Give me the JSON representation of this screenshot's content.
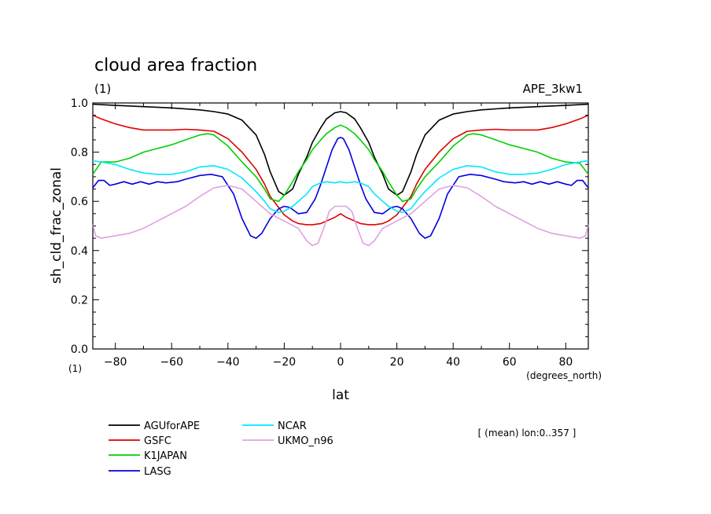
{
  "chart_data": {
    "type": "line",
    "title": "cloud area fraction",
    "subtitle_left": "(1)",
    "subtitle_right": "APE_3kw1",
    "xlabel": "lat",
    "xunit": "(degrees_north)",
    "ylabel": "sh_cld_frac_zonal",
    "yunit": "(1)",
    "note": "[ (mean) lon:0..357 ]",
    "xlim": [
      -88,
      88
    ],
    "ylim": [
      0,
      1
    ],
    "xticks": [
      -80,
      -60,
      -40,
      -20,
      0,
      20,
      40,
      60,
      80
    ],
    "xtick_labels": [
      "−80",
      "−60",
      "−40",
      "−20",
      "0",
      "20",
      "40",
      "60",
      "80"
    ],
    "yticks": [
      0,
      0.2,
      0.4,
      0.6,
      0.8,
      1.0
    ],
    "ytick_labels": [
      "0.0",
      "0.2",
      "0.4",
      "0.6",
      "0.8",
      "1.0"
    ],
    "grid": false,
    "legend_position": "bottom",
    "series": [
      {
        "name": "AGUforAPE",
        "color": "#000000",
        "x": [
          -88,
          -80,
          -70,
          -60,
          -50,
          -45,
          -40,
          -35,
          -30,
          -27,
          -25,
          -22,
          -20,
          -17,
          -15,
          -12,
          -10,
          -7,
          -5,
          -2,
          0,
          2,
          5,
          7,
          10,
          12,
          15,
          17,
          20,
          22,
          25,
          27,
          30,
          35,
          40,
          45,
          50,
          60,
          70,
          80,
          88
        ],
        "y": [
          0.995,
          0.99,
          0.985,
          0.98,
          0.972,
          0.965,
          0.955,
          0.93,
          0.87,
          0.79,
          0.72,
          0.64,
          0.625,
          0.65,
          0.71,
          0.78,
          0.84,
          0.9,
          0.935,
          0.96,
          0.965,
          0.96,
          0.935,
          0.9,
          0.84,
          0.78,
          0.71,
          0.65,
          0.625,
          0.64,
          0.72,
          0.79,
          0.87,
          0.93,
          0.955,
          0.965,
          0.972,
          0.98,
          0.985,
          0.99,
          0.995
        ]
      },
      {
        "name": "GSFC",
        "color": "#e00000",
        "x": [
          -88,
          -85,
          -80,
          -75,
          -70,
          -60,
          -55,
          -50,
          -45,
          -40,
          -35,
          -30,
          -27,
          -25,
          -22,
          -20,
          -17,
          -15,
          -12,
          -10,
          -7,
          -5,
          -2,
          0,
          2,
          5,
          7,
          10,
          12,
          15,
          17,
          20,
          22,
          25,
          27,
          30,
          35,
          40,
          45,
          50,
          55,
          60,
          70,
          75,
          80,
          85,
          88
        ],
        "y": [
          0.95,
          0.935,
          0.915,
          0.9,
          0.89,
          0.89,
          0.893,
          0.89,
          0.885,
          0.855,
          0.8,
          0.73,
          0.67,
          0.62,
          0.575,
          0.545,
          0.52,
          0.51,
          0.505,
          0.505,
          0.51,
          0.52,
          0.535,
          0.55,
          0.535,
          0.52,
          0.51,
          0.505,
          0.505,
          0.51,
          0.52,
          0.545,
          0.575,
          0.62,
          0.67,
          0.73,
          0.8,
          0.855,
          0.885,
          0.89,
          0.893,
          0.89,
          0.89,
          0.9,
          0.915,
          0.935,
          0.95
        ]
      },
      {
        "name": "K1JAPAN",
        "color": "#00d000",
        "x": [
          -88,
          -85,
          -80,
          -75,
          -70,
          -65,
          -60,
          -55,
          -50,
          -47,
          -45,
          -40,
          -35,
          -30,
          -27,
          -25,
          -22,
          -20,
          -17,
          -15,
          -12,
          -10,
          -7,
          -5,
          -2,
          0,
          2,
          5,
          7,
          10,
          12,
          15,
          17,
          20,
          22,
          25,
          27,
          30,
          35,
          40,
          45,
          47,
          50,
          55,
          60,
          65,
          70,
          75,
          80,
          85,
          88
        ],
        "y": [
          0.71,
          0.76,
          0.76,
          0.775,
          0.8,
          0.815,
          0.83,
          0.85,
          0.87,
          0.875,
          0.87,
          0.825,
          0.76,
          0.7,
          0.65,
          0.61,
          0.6,
          0.625,
          0.68,
          0.72,
          0.77,
          0.81,
          0.85,
          0.875,
          0.9,
          0.91,
          0.9,
          0.875,
          0.85,
          0.81,
          0.77,
          0.72,
          0.68,
          0.625,
          0.6,
          0.61,
          0.65,
          0.7,
          0.76,
          0.825,
          0.87,
          0.875,
          0.87,
          0.85,
          0.83,
          0.815,
          0.8,
          0.775,
          0.76,
          0.755,
          0.71
        ]
      },
      {
        "name": "LASG",
        "color": "#0000e0",
        "x": [
          -88,
          -86,
          -84,
          -82,
          -80,
          -77,
          -74,
          -71,
          -68,
          -65,
          -62,
          -58,
          -55,
          -50,
          -46,
          -42,
          -38,
          -35,
          -32,
          -30,
          -28,
          -25,
          -22,
          -20,
          -18,
          -15,
          -12,
          -9,
          -7,
          -5,
          -3,
          -1,
          0,
          1,
          3,
          5,
          7,
          9,
          12,
          15,
          18,
          20,
          22,
          25,
          28,
          30,
          32,
          35,
          38,
          42,
          46,
          50,
          55,
          58,
          62,
          65,
          68,
          71,
          74,
          77,
          80,
          82,
          84,
          86,
          88
        ],
        "y": [
          0.655,
          0.685,
          0.685,
          0.665,
          0.67,
          0.68,
          0.67,
          0.68,
          0.67,
          0.68,
          0.675,
          0.68,
          0.69,
          0.705,
          0.71,
          0.7,
          0.63,
          0.53,
          0.46,
          0.45,
          0.47,
          0.53,
          0.57,
          0.58,
          0.575,
          0.55,
          0.555,
          0.61,
          0.67,
          0.74,
          0.81,
          0.855,
          0.86,
          0.855,
          0.81,
          0.74,
          0.67,
          0.61,
          0.555,
          0.55,
          0.575,
          0.58,
          0.57,
          0.53,
          0.47,
          0.45,
          0.46,
          0.53,
          0.63,
          0.7,
          0.71,
          0.705,
          0.69,
          0.68,
          0.675,
          0.68,
          0.67,
          0.68,
          0.67,
          0.68,
          0.67,
          0.665,
          0.685,
          0.685,
          0.655
        ]
      },
      {
        "name": "NCAR",
        "color": "#00e8ff",
        "x": [
          -88,
          -85,
          -80,
          -75,
          -70,
          -65,
          -60,
          -55,
          -50,
          -45,
          -40,
          -35,
          -30,
          -27,
          -25,
          -22,
          -20,
          -17,
          -15,
          -12,
          -10,
          -7,
          -5,
          -2,
          0,
          2,
          5,
          7,
          10,
          12,
          15,
          17,
          20,
          22,
          25,
          27,
          30,
          35,
          40,
          45,
          50,
          55,
          60,
          65,
          70,
          75,
          80,
          85,
          88
        ],
        "y": [
          0.765,
          0.76,
          0.75,
          0.73,
          0.715,
          0.71,
          0.71,
          0.72,
          0.74,
          0.745,
          0.73,
          0.695,
          0.64,
          0.6,
          0.57,
          0.555,
          0.56,
          0.58,
          0.6,
          0.63,
          0.66,
          0.675,
          0.68,
          0.675,
          0.68,
          0.675,
          0.68,
          0.675,
          0.66,
          0.63,
          0.6,
          0.58,
          0.56,
          0.555,
          0.57,
          0.6,
          0.64,
          0.695,
          0.73,
          0.745,
          0.74,
          0.72,
          0.71,
          0.71,
          0.715,
          0.73,
          0.75,
          0.76,
          0.765
        ]
      },
      {
        "name": "UKMO_n96",
        "color": "#e0a0e0",
        "x": [
          -88,
          -87,
          -85,
          -80,
          -75,
          -70,
          -65,
          -60,
          -55,
          -50,
          -45,
          -40,
          -35,
          -30,
          -25,
          -20,
          -15,
          -12,
          -10,
          -8,
          -6,
          -4,
          -2,
          0,
          2,
          4,
          6,
          8,
          10,
          12,
          15,
          20,
          25,
          30,
          35,
          40,
          45,
          50,
          55,
          60,
          65,
          70,
          75,
          80,
          85,
          87,
          88
        ],
        "y": [
          0.505,
          0.46,
          0.45,
          0.46,
          0.47,
          0.49,
          0.52,
          0.55,
          0.58,
          0.62,
          0.655,
          0.665,
          0.65,
          0.6,
          0.55,
          0.52,
          0.49,
          0.44,
          0.42,
          0.43,
          0.49,
          0.56,
          0.58,
          0.58,
          0.58,
          0.56,
          0.49,
          0.43,
          0.42,
          0.44,
          0.49,
          0.52,
          0.55,
          0.6,
          0.65,
          0.665,
          0.655,
          0.62,
          0.58,
          0.55,
          0.52,
          0.49,
          0.47,
          0.46,
          0.45,
          0.46,
          0.505
        ]
      }
    ]
  }
}
